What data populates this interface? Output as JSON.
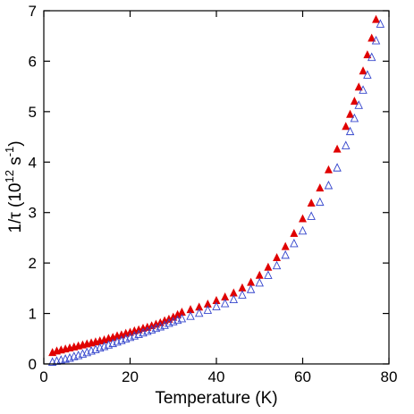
{
  "chart_data": {
    "type": "scatter",
    "title": "",
    "xlabel": "Temperature (K)",
    "ylabel": {
      "prefix": "1/τ (10",
      "exp1": "12",
      "middle": " s",
      "exp2": "-1",
      "suffix": ")"
    },
    "xlim": [
      0,
      80
    ],
    "ylim": [
      0,
      7
    ],
    "x_ticks": [
      0,
      20,
      40,
      60,
      80
    ],
    "y_ticks": [
      0,
      1,
      2,
      3,
      4,
      5,
      6,
      7
    ],
    "grid": false,
    "legend": "none",
    "series": [
      {
        "marker": "filled-triangle",
        "color": "#e00000",
        "points": [
          [
            2,
            0.22
          ],
          [
            3,
            0.25
          ],
          [
            4,
            0.27
          ],
          [
            5,
            0.29
          ],
          [
            6,
            0.31
          ],
          [
            7,
            0.33
          ],
          [
            8,
            0.35
          ],
          [
            9,
            0.37
          ],
          [
            10,
            0.39
          ],
          [
            11,
            0.41
          ],
          [
            12,
            0.43
          ],
          [
            13,
            0.45
          ],
          [
            14,
            0.47
          ],
          [
            15,
            0.5
          ],
          [
            16,
            0.52
          ],
          [
            17,
            0.55
          ],
          [
            18,
            0.57
          ],
          [
            19,
            0.6
          ],
          [
            20,
            0.62
          ],
          [
            21,
            0.65
          ],
          [
            22,
            0.67
          ],
          [
            23,
            0.7
          ],
          [
            24,
            0.72
          ],
          [
            25,
            0.75
          ],
          [
            26,
            0.78
          ],
          [
            27,
            0.81
          ],
          [
            28,
            0.85
          ],
          [
            29,
            0.88
          ],
          [
            30,
            0.92
          ],
          [
            31,
            0.97
          ],
          [
            32,
            1.02
          ],
          [
            34,
            1.07
          ],
          [
            36,
            1.12
          ],
          [
            38,
            1.18
          ],
          [
            40,
            1.25
          ],
          [
            42,
            1.32
          ],
          [
            44,
            1.4
          ],
          [
            46,
            1.5
          ],
          [
            48,
            1.61
          ],
          [
            50,
            1.75
          ],
          [
            52,
            1.91
          ],
          [
            54,
            2.1
          ],
          [
            56,
            2.32
          ],
          [
            58,
            2.58
          ],
          [
            60,
            2.87
          ],
          [
            62,
            3.18
          ],
          [
            64,
            3.48
          ],
          [
            66,
            3.84
          ],
          [
            68,
            4.25
          ],
          [
            70,
            4.7
          ],
          [
            71,
            4.94
          ],
          [
            72,
            5.2
          ],
          [
            73,
            5.48
          ],
          [
            74,
            5.8
          ],
          [
            75,
            6.12
          ],
          [
            76,
            6.45
          ],
          [
            77,
            6.82
          ]
        ]
      },
      {
        "marker": "open-triangle",
        "color": "#3344cc",
        "points": [
          [
            2,
            0.03
          ],
          [
            3,
            0.05
          ],
          [
            4,
            0.07
          ],
          [
            5,
            0.09
          ],
          [
            6,
            0.11
          ],
          [
            7,
            0.14
          ],
          [
            8,
            0.16
          ],
          [
            9,
            0.19
          ],
          [
            10,
            0.22
          ],
          [
            11,
            0.25
          ],
          [
            12,
            0.28
          ],
          [
            13,
            0.31
          ],
          [
            14,
            0.34
          ],
          [
            15,
            0.37
          ],
          [
            16,
            0.4
          ],
          [
            17,
            0.43
          ],
          [
            18,
            0.46
          ],
          [
            19,
            0.49
          ],
          [
            20,
            0.52
          ],
          [
            21,
            0.55
          ],
          [
            22,
            0.58
          ],
          [
            23,
            0.61
          ],
          [
            24,
            0.64
          ],
          [
            25,
            0.67
          ],
          [
            26,
            0.7
          ],
          [
            27,
            0.73
          ],
          [
            28,
            0.76
          ],
          [
            29,
            0.8
          ],
          [
            30,
            0.83
          ],
          [
            31,
            0.86
          ],
          [
            32,
            0.89
          ],
          [
            34,
            0.94
          ],
          [
            36,
            1.0
          ],
          [
            38,
            1.06
          ],
          [
            40,
            1.13
          ],
          [
            42,
            1.19
          ],
          [
            44,
            1.27
          ],
          [
            46,
            1.36
          ],
          [
            48,
            1.47
          ],
          [
            50,
            1.6
          ],
          [
            52,
            1.75
          ],
          [
            54,
            1.94
          ],
          [
            56,
            2.15
          ],
          [
            58,
            2.38
          ],
          [
            60,
            2.63
          ],
          [
            62,
            2.92
          ],
          [
            64,
            3.2
          ],
          [
            66,
            3.53
          ],
          [
            68,
            3.88
          ],
          [
            70,
            4.32
          ],
          [
            71,
            4.6
          ],
          [
            72,
            4.86
          ],
          [
            73,
            5.12
          ],
          [
            74,
            5.42
          ],
          [
            75,
            5.72
          ],
          [
            76,
            6.07
          ],
          [
            77,
            6.4
          ],
          [
            78,
            6.73
          ]
        ]
      }
    ]
  }
}
